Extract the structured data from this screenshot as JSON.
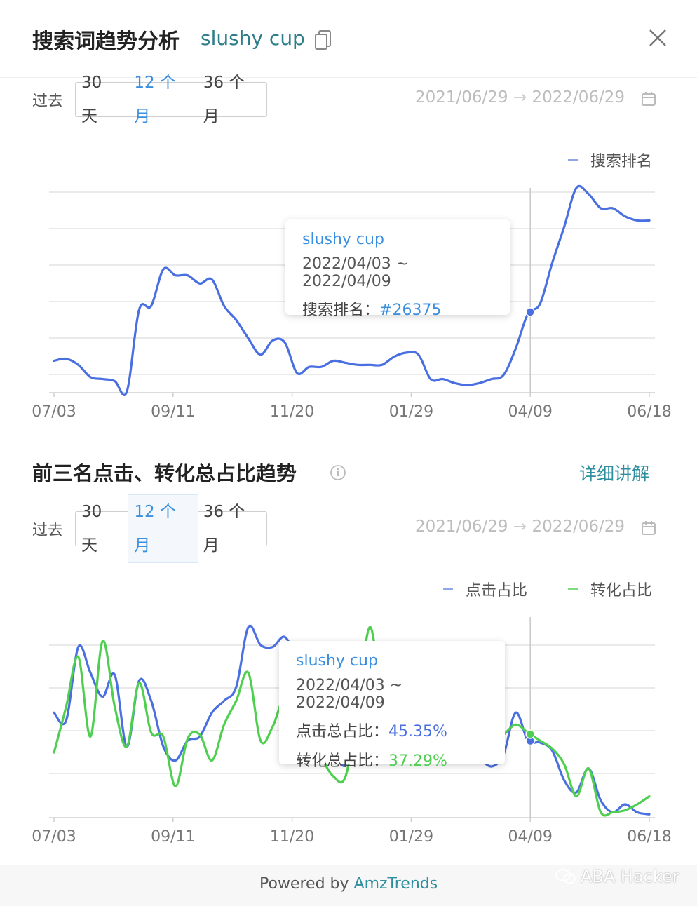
{
  "header": {
    "title": "搜索词趋势分析",
    "keyword": "slushy cup"
  },
  "section1": {
    "range": {
      "past_label": "过去",
      "options": [
        "30 天",
        "12 个月",
        "36 个月"
      ],
      "active": "12 个月",
      "date_from": "2021/06/29",
      "date_to": "2022/06/29"
    },
    "tooltip": {
      "keyword": "slushy cup",
      "date_range": "2022/04/03 ~ 2022/04/09",
      "metric_label": "搜索排名：",
      "metric_value": "#26375"
    }
  },
  "section2": {
    "title": "前三名点击、转化总占比趋势",
    "detail_link": "详细讲解",
    "range": {
      "past_label": "过去",
      "options": [
        "30 天",
        "12 个月",
        "36 个月"
      ],
      "active": "12 个月",
      "date_from": "2021/06/29",
      "date_to": "2022/06/29"
    },
    "tooltip": {
      "keyword": "slushy cup",
      "date_range": "2022/04/03 ~ 2022/04/09",
      "click_label": "点击总占比：",
      "click_value": "45.35%",
      "conv_label": "转化总占比：",
      "conv_value": "37.29%"
    }
  },
  "footer": {
    "powered_prefix": "Powered by ",
    "powered_brand": "AmzTrends",
    "watermark": "ABA Hacker"
  },
  "colors": {
    "blue": "#4a6fe0",
    "green": "#4fcf4f",
    "link": "#3b8fe0"
  },
  "chart_data": [
    {
      "type": "line",
      "title": "",
      "legend": [
        "搜索排名"
      ],
      "legend_position": "top-right",
      "x_ticks": [
        "07/03",
        "09/11",
        "11/20",
        "01/29",
        "04/09",
        "06/18"
      ],
      "grid": true,
      "y_axis_labels_shown": false,
      "series": [
        {
          "name": "搜索排名",
          "color": "#4a6fe0",
          "values": [
            0.15,
            0.16,
            0.13,
            0.07,
            0.06,
            0.05,
            0.0,
            0.4,
            0.42,
            0.6,
            0.57,
            0.57,
            0.53,
            0.55,
            0.42,
            0.35,
            0.26,
            0.18,
            0.25,
            0.24,
            0.09,
            0.12,
            0.12,
            0.15,
            0.14,
            0.13,
            0.13,
            0.13,
            0.17,
            0.19,
            0.18,
            0.06,
            0.06,
            0.04,
            0.03,
            0.04,
            0.06,
            0.08,
            0.21,
            0.38,
            0.43,
            0.63,
            0.81,
            1.0,
            0.97,
            0.9,
            0.9,
            0.86,
            0.84,
            0.84
          ],
          "highlight": {
            "x": "04/09",
            "date_range": "2022/04/03 ~ 2022/04/09",
            "label": "#26375"
          }
        }
      ]
    },
    {
      "type": "line",
      "title": "",
      "legend": [
        "点击占比",
        "转化占比"
      ],
      "legend_position": "top-right",
      "x_ticks": [
        "07/03",
        "09/11",
        "11/20",
        "01/29",
        "04/09",
        "06/18"
      ],
      "grid": true,
      "y_axis_labels_shown": false,
      "series": [
        {
          "name": "点击占比",
          "color": "#4a6fe0",
          "values": [
            0.52,
            0.48,
            0.85,
            0.72,
            0.6,
            0.71,
            0.35,
            0.68,
            0.58,
            0.35,
            0.28,
            0.38,
            0.4,
            0.52,
            0.58,
            0.65,
            0.95,
            0.86,
            0.85,
            0.9,
            0.78,
            0.62,
            0.45,
            0.35,
            0.26,
            0.55,
            0.7,
            0.72,
            0.75,
            0.78,
            0.65,
            0.6,
            0.5,
            0.45,
            0.4,
            0.3,
            0.25,
            0.31,
            0.52,
            0.38,
            0.37,
            0.33,
            0.18,
            0.12,
            0.24,
            0.08,
            0.02,
            0.06,
            0.02,
            0.01
          ],
          "highlight": {
            "x": "04/09",
            "value": "45.35%"
          }
        },
        {
          "name": "转化占比",
          "color": "#4fcf4f",
          "values": [
            0.32,
            0.55,
            0.8,
            0.4,
            0.88,
            0.55,
            0.35,
            0.67,
            0.42,
            0.4,
            0.15,
            0.39,
            0.41,
            0.28,
            0.46,
            0.58,
            0.72,
            0.38,
            0.45,
            0.6,
            0.5,
            0.45,
            0.3,
            0.2,
            0.2,
            0.55,
            0.95,
            0.6,
            0.55,
            0.6,
            0.52,
            0.5,
            0.45,
            0.4,
            0.3,
            0.34,
            0.38,
            0.41,
            0.46,
            0.42,
            0.38,
            0.34,
            0.26,
            0.1,
            0.24,
            0.02,
            0.02,
            0.03,
            0.06,
            0.1
          ],
          "highlight": {
            "x": "04/09",
            "value": "37.29%"
          }
        }
      ]
    }
  ]
}
